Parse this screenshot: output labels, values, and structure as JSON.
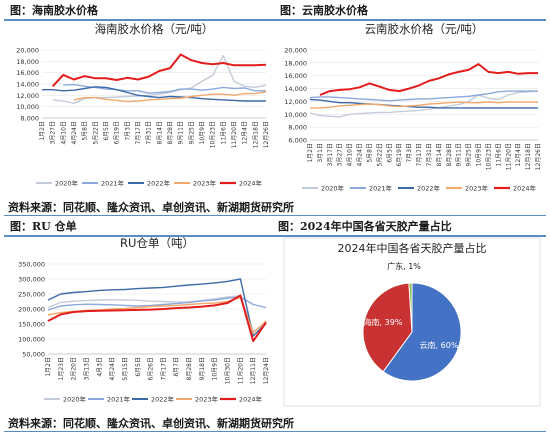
{
  "captions": {
    "fig1": "图：海南胶水价格",
    "fig2": "图：云南胶水价格",
    "fig3": "图：RU 仓单",
    "fig4": "图：2024年中国各省天胶产量占比"
  },
  "sources": {
    "top": "资料来源：同花顺、隆众资讯、卓创资讯、新湖期货研究所",
    "bottom": "资料来源：同花顺、隆众资讯、卓创资讯、新湖期货研究所"
  },
  "series_colors": {
    "2020年": "#c4cbd8",
    "2021年": "#8da9db",
    "2022年": "#3d6aa8",
    "2023年": "#f2a86b",
    "2024年": "#e31c1c"
  },
  "chart_data": [
    {
      "type": "line",
      "title": "海南胶水价格（元/吨）",
      "xlabel": "",
      "ylabel": "",
      "ylim": [
        8000,
        20000
      ],
      "yticks": [
        "8,000",
        "10,000",
        "12,000",
        "14,000",
        "16,000",
        "18,000",
        "20,000"
      ],
      "xticks": [
        "1月2日",
        "3月27日",
        "4月10日",
        "4月24日",
        "5月8日",
        "5月22日",
        "6月5日",
        "6月19日",
        "7月3日",
        "7月17日",
        "7月31日",
        "8月14日",
        "8月28日",
        "9月11日",
        "9月25日",
        "10月9日",
        "10月23日",
        "11月6日",
        "11月20日",
        "12月4日",
        "12月18日",
        "12月26日"
      ],
      "legend_position": "bottom",
      "series": [
        {
          "name": "2020年",
          "values": [
            null,
            11200,
            11000,
            10600,
            11400,
            11600,
            11600,
            11700,
            11800,
            11900,
            12000,
            12200,
            12500,
            13000,
            13300,
            14500,
            15500,
            19000,
            14500,
            13600,
            13400,
            13800
          ]
        },
        {
          "name": "2021年",
          "values": [
            null,
            null,
            13800,
            13900,
            13600,
            13400,
            13100,
            13000,
            12800,
            12800,
            12400,
            12500,
            12700,
            13100,
            13100,
            12900,
            13100,
            13400,
            13200,
            13300,
            12800,
            12800
          ]
        },
        {
          "name": "2022年",
          "values": [
            13000,
            13000,
            12800,
            12900,
            13200,
            13500,
            13400,
            13000,
            12500,
            12000,
            11800,
            11600,
            11800,
            11700,
            11600,
            11400,
            11300,
            11200,
            11100,
            11000,
            11000,
            11000
          ]
        },
        {
          "name": "2023年",
          "values": [
            null,
            null,
            null,
            11200,
            11600,
            11600,
            11300,
            11100,
            10900,
            11000,
            11200,
            11300,
            11400,
            11500,
            11800,
            12000,
            12200,
            12200,
            12000,
            12300,
            12300,
            12600
          ]
        },
        {
          "name": "2024年",
          "values": [
            null,
            13600,
            15600,
            14800,
            15400,
            15000,
            15000,
            14700,
            15100,
            14800,
            15300,
            16300,
            16800,
            19200,
            18200,
            17700,
            17500,
            17700,
            17300,
            17300,
            17300,
            17400
          ]
        }
      ]
    },
    {
      "type": "line",
      "title": "云南胶水价格（元/吨）",
      "xlabel": "",
      "ylabel": "",
      "ylim": [
        6000,
        20000
      ],
      "yticks": [
        "6,000",
        "8,000",
        "10,000",
        "12,000",
        "14,000",
        "16,000",
        "18,000",
        "20,000"
      ],
      "xticks": [
        "1月2日",
        "3月1日",
        "3月17日",
        "3月27日",
        "4月10日",
        "4月24日",
        "5月8日",
        "5月22日",
        "6月5日",
        "6月19日",
        "7月3日",
        "7月17日",
        "7月31日",
        "8月14日",
        "8月28日",
        "9月11日",
        "9月25日",
        "10月9日",
        "10月23日",
        "11月6日",
        "11月20日",
        "12月4日",
        "12月18日",
        "12月26日"
      ],
      "legend_position": "bottom",
      "series": [
        {
          "name": "2020年",
          "values": [
            10200,
            9800,
            9700,
            9600,
            10000,
            10100,
            10200,
            10300,
            10300,
            10400,
            10500,
            10600,
            10800,
            11000,
            11300,
            11500,
            12000,
            13000,
            12500,
            12300,
            13000,
            13400,
            13500,
            13600
          ]
        },
        {
          "name": "2021年",
          "values": [
            12600,
            12700,
            12700,
            12600,
            12500,
            12400,
            12300,
            12200,
            12100,
            12200,
            12300,
            12400,
            12400,
            12500,
            12600,
            12700,
            12800,
            13000,
            13200,
            13500,
            13600,
            13600,
            13600,
            13600
          ]
        },
        {
          "name": "2022年",
          "values": [
            12300,
            12200,
            12000,
            11800,
            11800,
            11700,
            11600,
            11500,
            11400,
            11300,
            11200,
            11100,
            11100,
            11000,
            11000,
            11000,
            11000,
            11000,
            11000,
            11000,
            11000,
            11000,
            11000,
            11000
          ]
        },
        {
          "name": "2023年",
          "values": [
            11000,
            11000,
            11100,
            11300,
            11400,
            11500,
            11600,
            11500,
            11300,
            11200,
            11300,
            11400,
            11600,
            11700,
            11800,
            11900,
            11800,
            11800,
            11900,
            11800,
            11900,
            11900,
            11900,
            11900
          ]
        },
        {
          "name": "2024年",
          "values": [
            null,
            13000,
            13600,
            13800,
            13900,
            14200,
            14800,
            14300,
            13800,
            13600,
            14000,
            14500,
            15200,
            15600,
            16200,
            16600,
            16900,
            17800,
            16600,
            16400,
            16600,
            16300,
            16400,
            16400
          ]
        }
      ]
    },
    {
      "type": "line",
      "title": "RU仓单（吨）",
      "xlabel": "",
      "ylabel": "",
      "ylim": [
        50000,
        350000
      ],
      "yticks": [
        "50,000",
        "100,000",
        "150,000",
        "200,000",
        "250,000",
        "300,000",
        "350,000"
      ],
      "xticks": [
        "1月2日",
        "1月23日",
        "2月20日",
        "3月13日",
        "4月3日",
        "4月24日",
        "5月15日",
        "6月5日",
        "6月26日",
        "7月17日",
        "8月7日",
        "8月28日",
        "9月18日",
        "10月9日",
        "10月30日",
        "11月20日",
        "12月11日",
        "12月24日"
      ],
      "legend_position": "bottom",
      "series": [
        {
          "name": "2020年",
          "values": [
            205000,
            222000,
            226000,
            228000,
            230000,
            231000,
            230000,
            229000,
            226000,
            225000,
            223000,
            224000,
            228000,
            234000,
            240000,
            244000,
            126000,
            150000
          ]
        },
        {
          "name": "2021年",
          "values": [
            197000,
            210000,
            214000,
            216000,
            215000,
            214000,
            212000,
            210000,
            212000,
            215000,
            218000,
            222000,
            227000,
            230000,
            236000,
            240000,
            215000,
            205000
          ]
        },
        {
          "name": "2022年",
          "values": [
            230000,
            250000,
            255000,
            258000,
            262000,
            264000,
            265000,
            268000,
            270000,
            272000,
            276000,
            280000,
            283000,
            287000,
            292000,
            300000,
            110000,
            153000
          ]
        },
        {
          "name": "2023年",
          "values": [
            180000,
            188000,
            192000,
            195000,
            197000,
            200000,
            202000,
            205000,
            208000,
            210000,
            212000,
            215000,
            218000,
            220000,
            225000,
            238000,
            120000,
            160000
          ]
        },
        {
          "name": "2024年",
          "values": [
            160000,
            182000,
            190000,
            193000,
            194000,
            195000,
            196000,
            197000,
            198000,
            200000,
            203000,
            205000,
            208000,
            212000,
            220000,
            245000,
            93000,
            155000
          ]
        }
      ]
    },
    {
      "type": "pie",
      "title": "2024年中国各省天胶产量占比",
      "slices": [
        {
          "label": "云南",
          "value": 60,
          "color": "#4472c4",
          "display": "云南, 60%"
        },
        {
          "label": "海南",
          "value": 39,
          "color": "#c83232",
          "display": "海南, 39%"
        },
        {
          "label": "广东",
          "value": 1,
          "color": "#8ab84c",
          "display": "广东, 1%"
        }
      ]
    }
  ]
}
